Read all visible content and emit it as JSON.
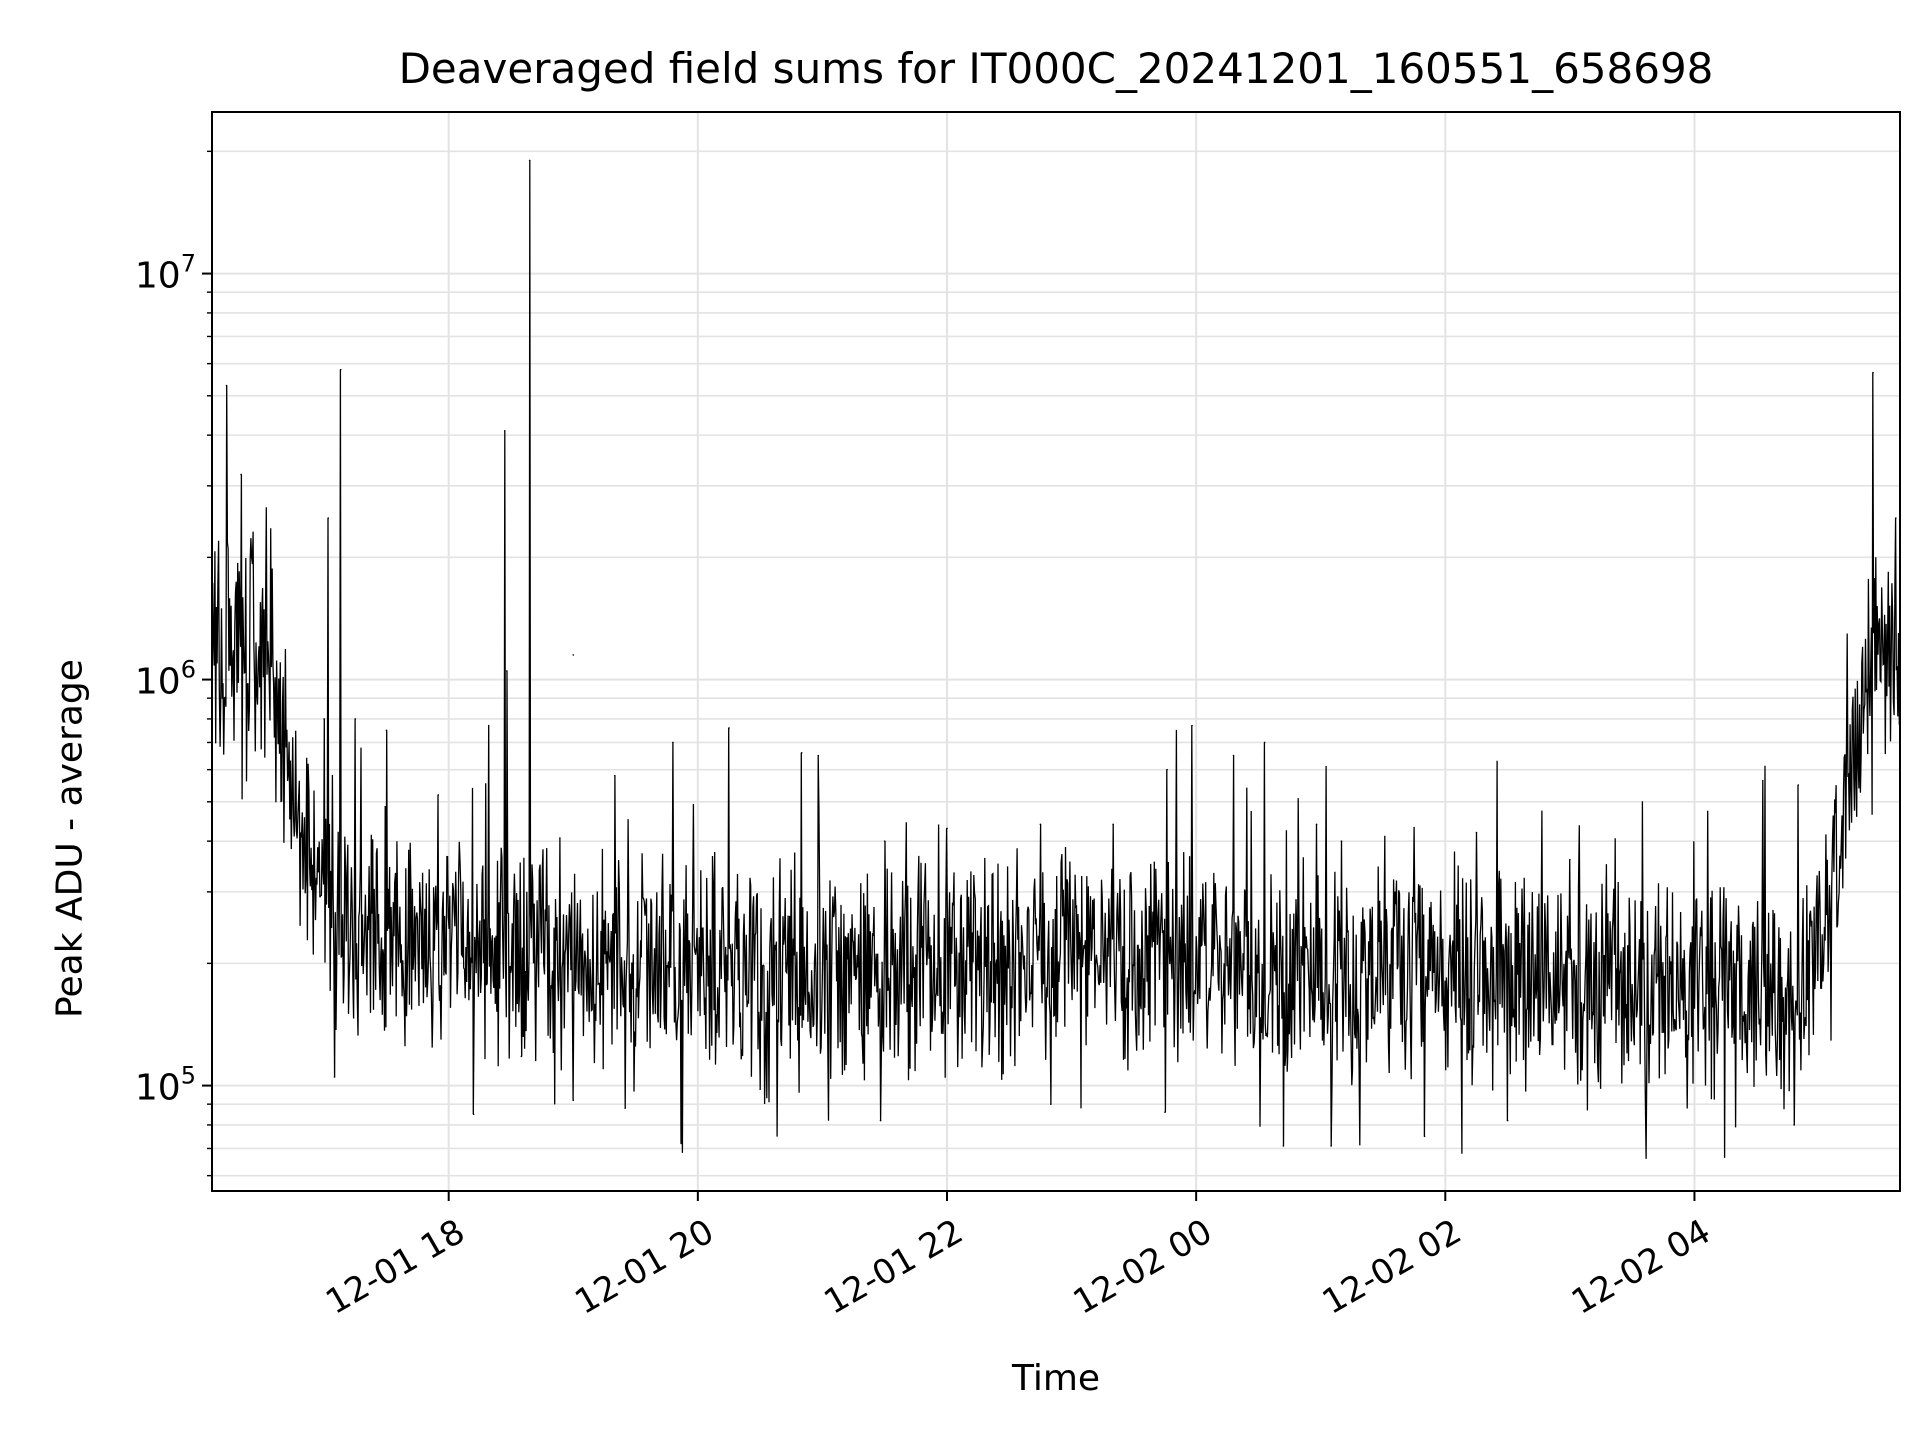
{
  "chart_data": {
    "type": "line",
    "title": "Deaveraged field sums for IT000C_20241201_160551_658698",
    "xlabel": "Time",
    "ylabel": "Peak ADU - average",
    "x_scale": "time",
    "y_scale": "log",
    "xlim": [
      "2024-12-01 16:06",
      "2024-12-02 05:39"
    ],
    "ylim": [
      55000,
      25000000
    ],
    "x_ticks": [
      "2024-12-01 18:00",
      "2024-12-01 20:00",
      "2024-12-01 22:00",
      "2024-12-02 00:00",
      "2024-12-02 02:00",
      "2024-12-02 04:00"
    ],
    "x_tick_labels": [
      "12-01 18",
      "12-01 20",
      "12-01 22",
      "12-02 00",
      "12-02 02",
      "12-02 04"
    ],
    "y_tick_labels": [
      {
        "value": 100000,
        "base": "10",
        "exp": "5"
      },
      {
        "value": 1000000,
        "base": "10",
        "exp": "6"
      },
      {
        "value": 10000000,
        "base": "10",
        "exp": "7"
      }
    ],
    "grid": true,
    "legend": "none",
    "series": [
      {
        "color": "#000000",
        "baseline": [
          [
            "2024-12-01 16:06",
            1200000
          ],
          [
            "2024-12-01 16:25",
            1150000
          ],
          [
            "2024-12-01 16:35",
            800000
          ],
          [
            "2024-12-01 16:45",
            550000
          ],
          [
            "2024-12-01 16:52",
            350000
          ],
          [
            "2024-12-01 17:00",
            280000
          ],
          [
            "2024-12-01 17:15",
            230000
          ],
          [
            "2024-12-01 18:00",
            220000
          ],
          [
            "2024-12-01 19:00",
            210000
          ],
          [
            "2024-12-01 20:00",
            195000
          ],
          [
            "2024-12-01 22:00",
            190000
          ],
          [
            "2024-12-01 23:00",
            210000
          ],
          [
            "2024-12-02 00:00",
            205000
          ],
          [
            "2024-12-02 02:00",
            190000
          ],
          [
            "2024-12-02 04:00",
            175000
          ],
          [
            "2024-12-02 04:50",
            175000
          ],
          [
            "2024-12-02 05:00",
            230000
          ],
          [
            "2024-12-02 05:10",
            400000
          ],
          [
            "2024-12-02 05:20",
            900000
          ],
          [
            "2024-12-02 05:30",
            1250000
          ],
          [
            "2024-12-02 05:39",
            1200000
          ]
        ],
        "peaks": [
          [
            "2024-12-01 16:13",
            5300000
          ],
          [
            "2024-12-01 16:20",
            3200000
          ],
          [
            "2024-12-01 16:25",
            2000000
          ],
          [
            "2024-12-01 16:42",
            750000
          ],
          [
            "2024-12-01 17:00",
            800000
          ],
          [
            "2024-12-01 17:15",
            800000
          ],
          [
            "2024-12-01 17:02",
            2500000
          ],
          [
            "2024-12-01 17:08",
            5800000
          ],
          [
            "2024-12-01 17:30",
            750000
          ],
          [
            "2024-12-01 17:55",
            520000
          ],
          [
            "2024-12-01 18:27",
            4100000
          ],
          [
            "2024-12-01 18:28",
            1050000
          ],
          [
            "2024-12-01 18:39",
            19000000
          ],
          [
            "2024-12-01 19:00",
            1150000
          ],
          [
            "2024-12-01 19:20",
            580000
          ],
          [
            "2024-12-01 19:48",
            700000
          ],
          [
            "2024-12-01 20:15",
            760000
          ],
          [
            "2024-12-01 20:50",
            660000
          ],
          [
            "2024-12-01 20:58",
            650000
          ],
          [
            "2024-12-01 21:30",
            400000
          ],
          [
            "2024-12-01 22:00",
            430000
          ],
          [
            "2024-12-01 22:45",
            440000
          ],
          [
            "2024-12-01 23:20",
            440000
          ],
          [
            "2024-12-01 23:46",
            600000
          ],
          [
            "2024-12-01 23:58",
            770000
          ],
          [
            "2024-12-02 00:18",
            650000
          ],
          [
            "2024-12-02 00:33",
            700000
          ],
          [
            "2024-12-02 00:58",
            440000
          ],
          [
            "2024-12-02 01:10",
            400000
          ],
          [
            "2024-12-02 02:15",
            420000
          ],
          [
            "2024-12-02 03:00",
            360000
          ],
          [
            "2024-12-02 04:50",
            550000
          ],
          [
            "2024-12-02 05:26",
            5700000
          ],
          [
            "2024-12-02 05:37",
            2500000
          ]
        ],
        "dips": [
          [
            "2024-12-01 17:05",
            105000
          ],
          [
            "2024-12-01 18:12",
            85000
          ],
          [
            "2024-12-01 18:35",
            118000
          ],
          [
            "2024-12-01 19:00",
            92000
          ],
          [
            "2024-12-01 19:25",
            88000
          ],
          [
            "2024-12-01 19:52",
            72000
          ],
          [
            "2024-12-01 20:30",
            98000
          ],
          [
            "2024-12-01 21:28",
            82000
          ],
          [
            "2024-12-01 22:50",
            90000
          ],
          [
            "2024-12-01 23:45",
            86000
          ],
          [
            "2024-12-02 00:42",
            71000
          ],
          [
            "2024-12-02 01:05",
            71000
          ],
          [
            "2024-12-02 01:50",
            75000
          ],
          [
            "2024-12-02 02:30",
            82000
          ],
          [
            "2024-12-02 04:48",
            80000
          ]
        ]
      }
    ]
  }
}
